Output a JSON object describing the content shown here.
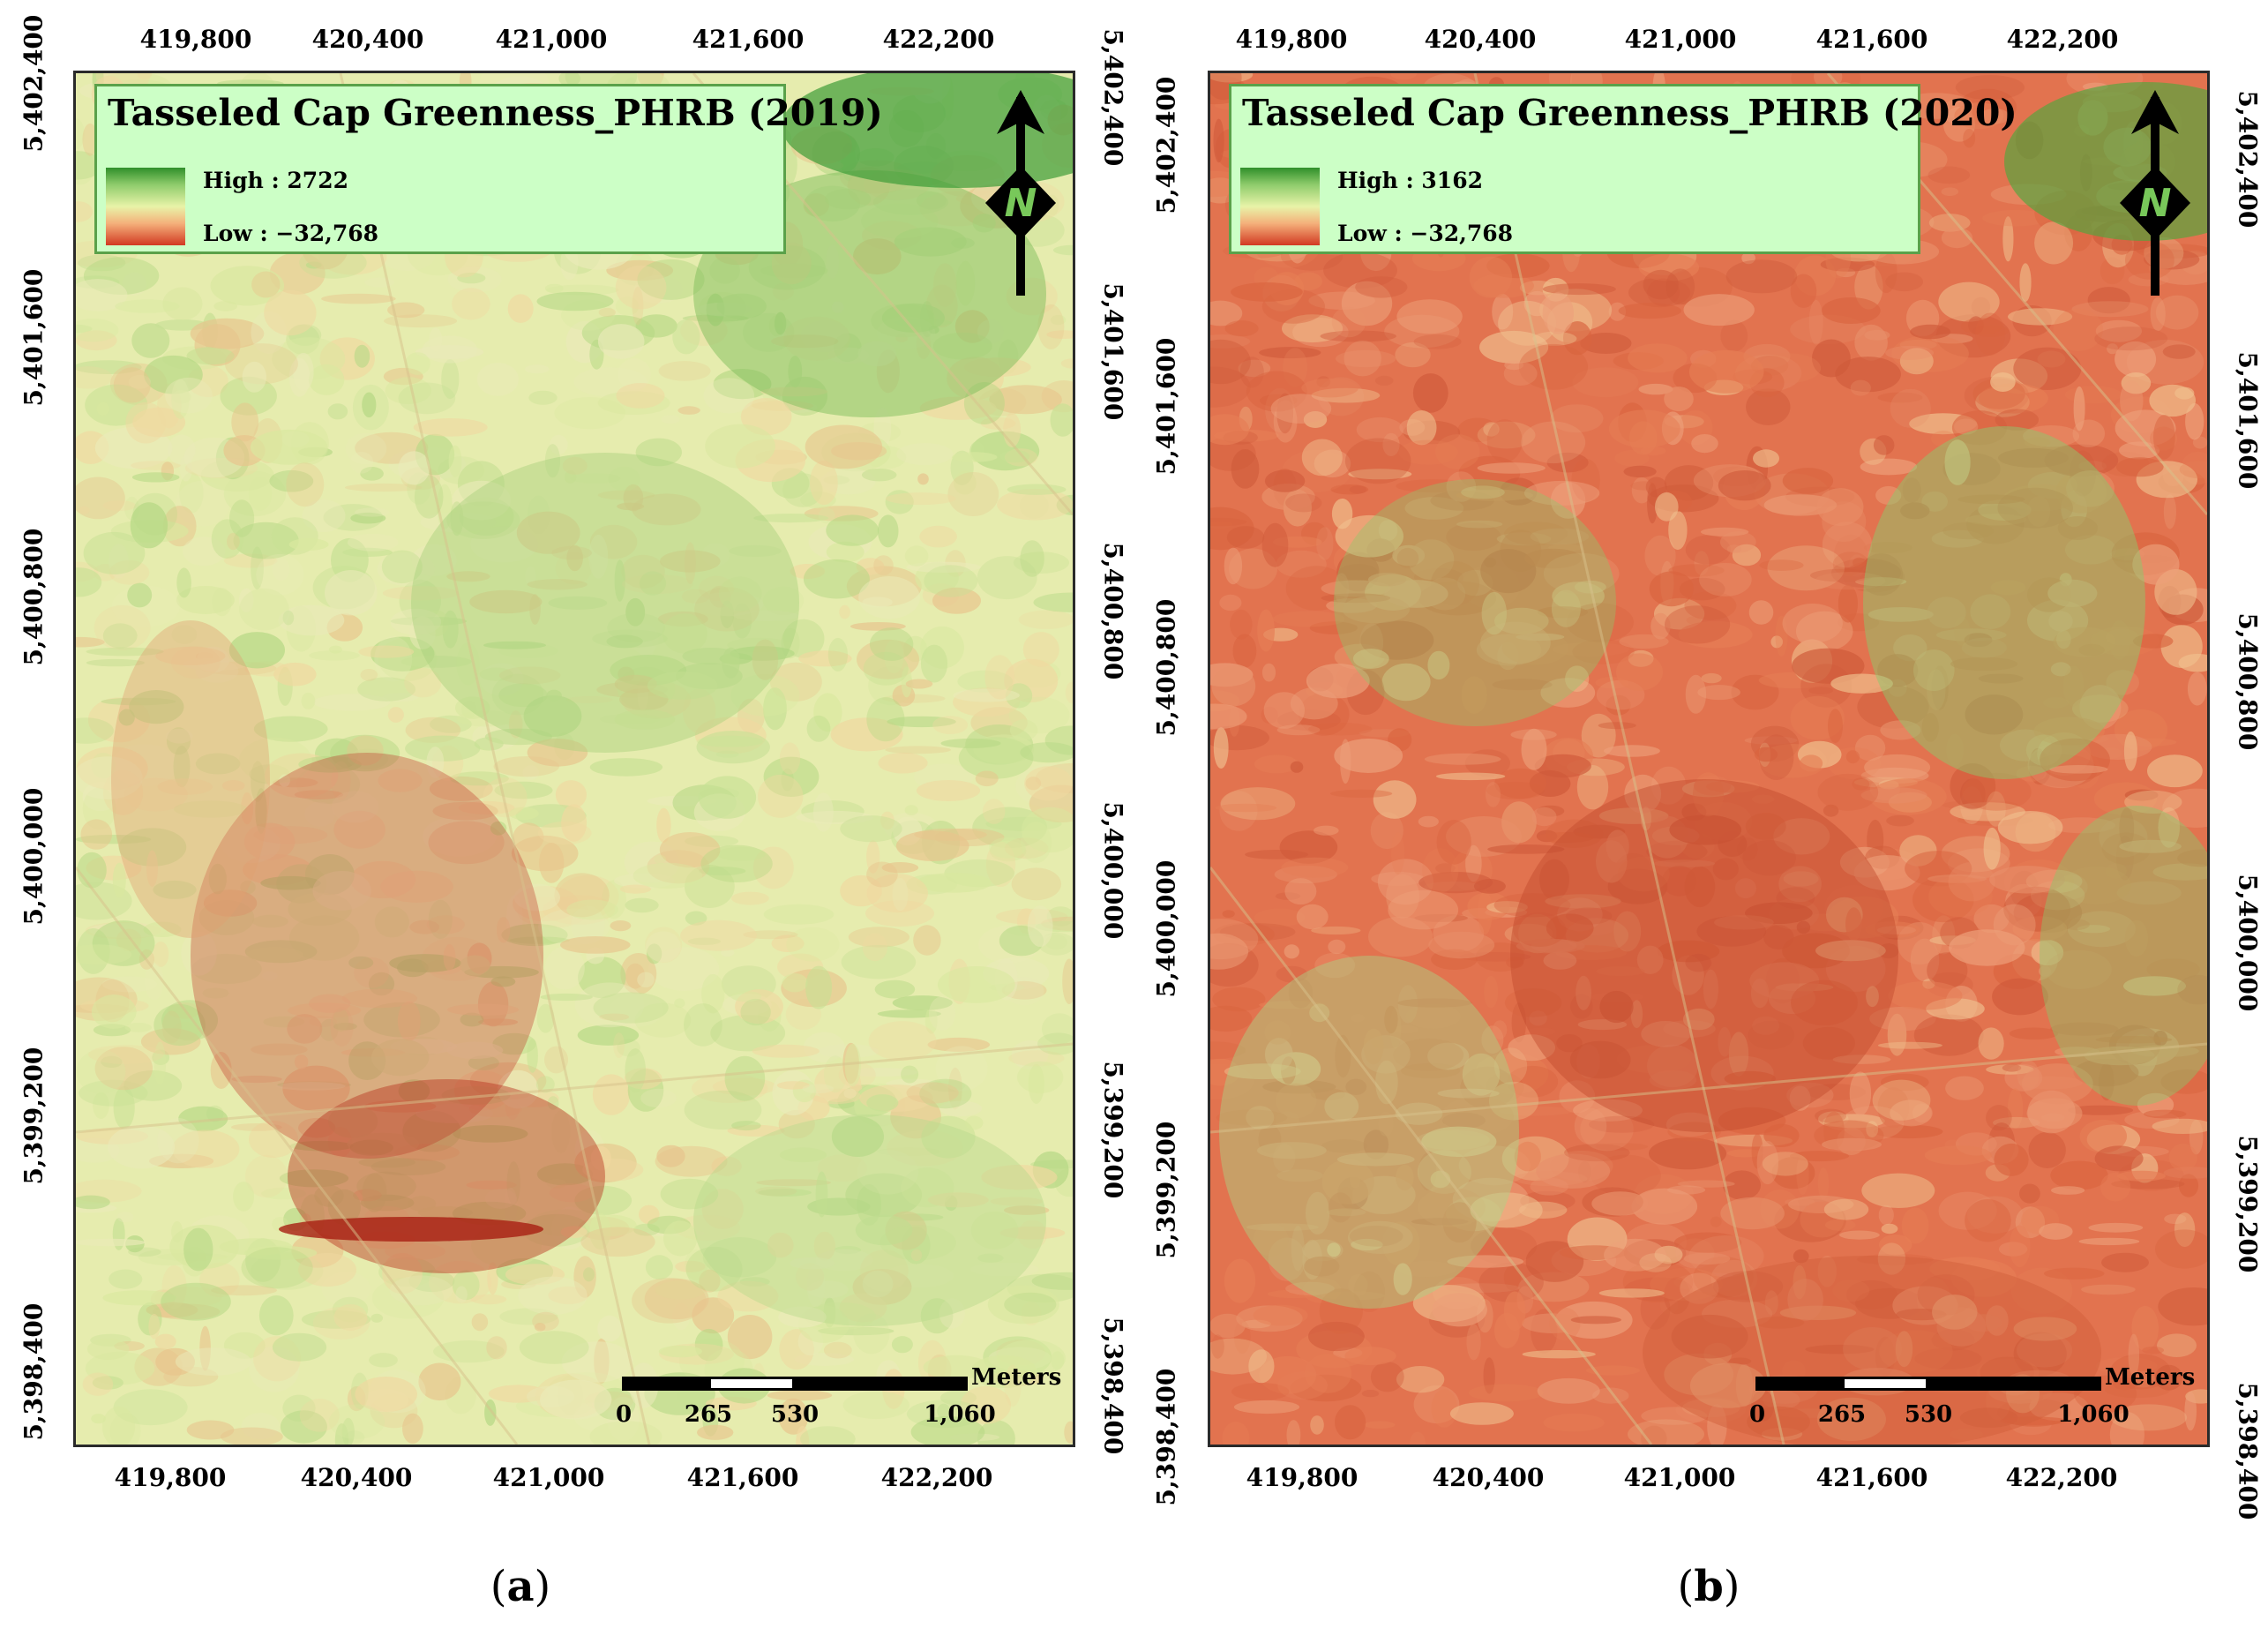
{
  "panels": [
    {
      "legend_title": "Tasseled Cap Greenness_PHRB (2019)",
      "legend_high": "High : 2722",
      "legend_low": "Low : −32,768",
      "x_ticks": [
        "419,800",
        "420,400",
        "421,000",
        "421,600",
        "422,200"
      ],
      "y_ticks_left": [
        "5,402,400",
        "5,401,600",
        "5,400,800",
        "5,400,000",
        "5,399,200",
        "5,398,400"
      ],
      "y_ticks_right": [
        "5,402,400",
        "5,401,600",
        "5,400,800",
        "5,400,000",
        "5,399,200",
        "5,398,400"
      ],
      "scale_labels": [
        "0",
        "265",
        "530",
        "1,060"
      ],
      "scale_unit": "Meters",
      "north_label": "N",
      "caption_letter": "a",
      "dominant_color": "#e6ecae",
      "palette": [
        "#d9e8a0",
        "#c7e094",
        "#eaeab8",
        "#f0d8a0",
        "#b5d884",
        "#e8c48c"
      ]
    },
    {
      "legend_title": "Tasseled Cap Greenness_PHRB (2020)",
      "legend_high": "High : 3162",
      "legend_low": "Low : −32,768",
      "x_ticks": [
        "419,800",
        "420,400",
        "421,000",
        "421,600",
        "422,200"
      ],
      "y_ticks_left": [
        "5,402,400",
        "5,401,600",
        "5,400,800",
        "5,400,000",
        "5,399,200",
        "5,398,400"
      ],
      "y_ticks_right": [
        "5,402,400",
        "5,401,600",
        "5,400,800",
        "5,400,000",
        "5,399,200",
        "5,398,400"
      ],
      "scale_labels": [
        "0",
        "265",
        "530",
        "1,060"
      ],
      "scale_unit": "Meters",
      "north_label": "N",
      "caption_letter": "b",
      "dominant_color": "#e2734f",
      "palette": [
        "#e67e55",
        "#d9643f",
        "#eda07a",
        "#f0c08e",
        "#cf5a3a",
        "#e8906a"
      ]
    }
  ]
}
